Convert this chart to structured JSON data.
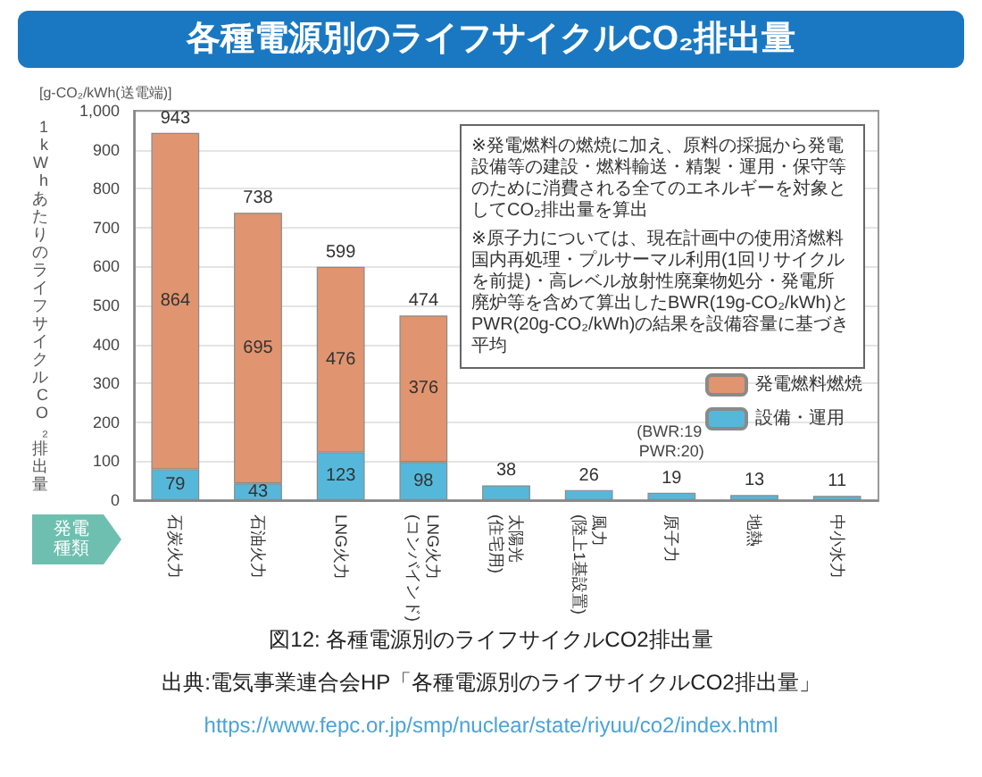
{
  "chart_data": {
    "type": "bar",
    "stacked": true,
    "title": "各種電源別のライフサイクルCO₂排出量",
    "ylabel": "1kWhあたりのライフサイクルCO₂排出量",
    "categories": [
      "石炭火力",
      "石油火力",
      "LNG火力",
      "LNG火力(コンバインド)",
      "太陽光(住宅用)",
      "風力(陸上1基設置)",
      "原子力",
      "地熱",
      "中小水力"
    ],
    "series": [
      {
        "name": "設備・運用",
        "color": "#55b8db",
        "values": [
          79,
          43,
          123,
          98,
          38,
          26,
          19,
          13,
          11
        ],
        "value_labels": [
          "79",
          "43",
          "123",
          "98",
          null,
          null,
          null,
          null,
          null
        ]
      },
      {
        "name": "発電燃料燃焼",
        "color": "#e0946f",
        "values": [
          864,
          695,
          476,
          376,
          null,
          null,
          null,
          null,
          null
        ],
        "value_labels": [
          "864",
          "695",
          "476",
          "376",
          null,
          null,
          null,
          null,
          null
        ]
      }
    ],
    "totals": [
      "943",
      "738",
      "599",
      "474",
      "38",
      "26",
      "19",
      "13",
      "11"
    ],
    "ylim": [
      0,
      1000
    ],
    "yticks": [
      0,
      100,
      200,
      300,
      400,
      500,
      600,
      700,
      800,
      900,
      {
        "value": 1000,
        "label": "1,000"
      }
    ],
    "grid": "y",
    "legend": "right",
    "annotations": [
      "[g-CO₂/kWh(送電端)]",
      "※発電燃料の燃焼に加え、原料の採掘から発電設備等の建設・燃料輸送・精製・運用・保守等のために消費される全てのエネルギーを対象としてCO₂排出量を算出",
      "※原子力については、現在計画中の使用済燃料国内再処理・プルサーマル利用(1回リサイクルを前提)・高レベル放射性廃棄物処分・発電所廃炉等を含めて算出したBWR(19g-CO₂/kWh)とPWR(20g-CO₂/kWh)の結果を設備容量に基づき平均",
      "(BWR:19 PWR:20)",
      "発電種類",
      "図12: 各種電源別のライフサイクルCO2排出量",
      "出典:電気事業連合会HP「各種電源別のライフサイクルCO2排出量」",
      "https://www.fepc.or.jp/smp/nuclear/state/riyuu/co2/index.html"
    ]
  }
}
